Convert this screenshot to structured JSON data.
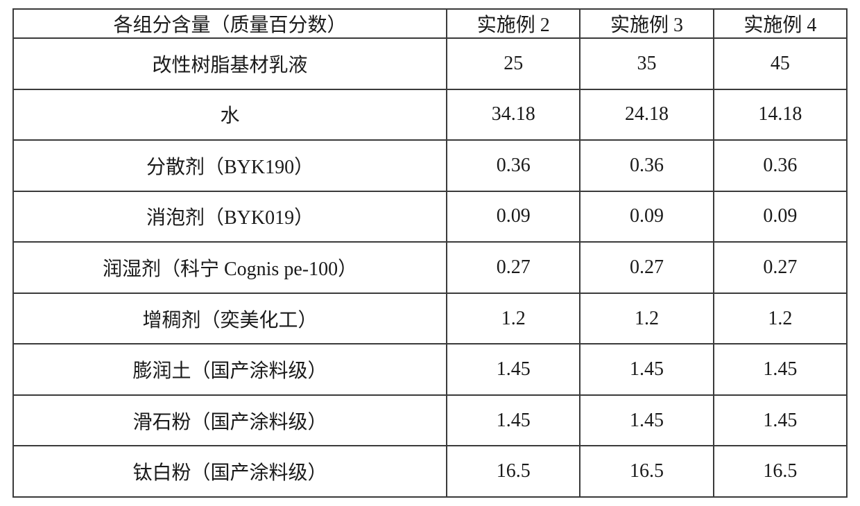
{
  "table": {
    "type": "table",
    "border_color": "#3a3a3a",
    "background_color": "#ffffff",
    "text_color": "#1a1a1a",
    "font_family": "SimSun",
    "cell_fontsize": 28,
    "column_widths_pct": [
      52,
      16,
      16,
      16
    ],
    "columns": [
      "各组分含量（质量百分数）",
      "实施例 2",
      "实施例 3",
      "实施例 4"
    ],
    "rows": [
      {
        "label": "改性树脂基材乳液",
        "v": [
          "25",
          "35",
          "45"
        ]
      },
      {
        "label": "水",
        "v": [
          "34.18",
          "24.18",
          "14.18"
        ]
      },
      {
        "label": "分散剂（BYK190）",
        "v": [
          "0.36",
          "0.36",
          "0.36"
        ]
      },
      {
        "label": "消泡剂（BYK019）",
        "v": [
          "0.09",
          "0.09",
          "0.09"
        ]
      },
      {
        "label": "润湿剂（科宁 Cognis pe-100）",
        "v": [
          "0.27",
          "0.27",
          "0.27"
        ]
      },
      {
        "label": "增稠剂（奕美化工）",
        "v": [
          "1.2",
          "1.2",
          "1.2"
        ]
      },
      {
        "label": "膨润土（国产涂料级）",
        "v": [
          "1.45",
          "1.45",
          "1.45"
        ]
      },
      {
        "label": "滑石粉（国产涂料级）",
        "v": [
          "1.45",
          "1.45",
          "1.45"
        ]
      },
      {
        "label": "钛白粉（国产涂料级）",
        "v": [
          "16.5",
          "16.5",
          "16.5"
        ]
      }
    ]
  }
}
